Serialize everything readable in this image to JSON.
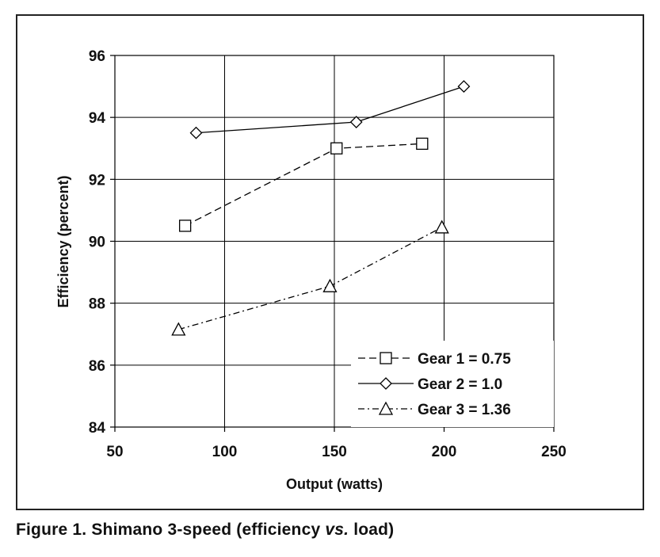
{
  "chart_data": {
    "type": "line",
    "title": "",
    "xlabel": "Output (watts)",
    "ylabel": "Efficiency (percent)",
    "xlim": [
      50,
      250
    ],
    "ylim": [
      84,
      96
    ],
    "xticks": [
      50,
      100,
      150,
      200,
      250
    ],
    "yticks": [
      84,
      86,
      88,
      90,
      92,
      94,
      96
    ],
    "grid": true,
    "legend_position": "bottom-right",
    "series": [
      {
        "name": "Gear 1 = 0.75",
        "marker": "square",
        "line_style": "dashed",
        "x": [
          82,
          151,
          190
        ],
        "y": [
          90.5,
          93.0,
          93.15
        ]
      },
      {
        "name": "Gear 2 = 1.0",
        "marker": "diamond",
        "line_style": "solid",
        "x": [
          87,
          160,
          209
        ],
        "y": [
          93.5,
          93.85,
          95.0
        ]
      },
      {
        "name": "Gear 3 = 1.36",
        "marker": "triangle",
        "line_style": "dash-dot",
        "x": [
          79,
          148,
          199
        ],
        "y": [
          87.15,
          88.55,
          90.45
        ]
      }
    ]
  },
  "caption": {
    "prefix": "Figure 1. Shimano 3-speed (efficiency ",
    "italic": "vs.",
    "suffix": " load)"
  }
}
